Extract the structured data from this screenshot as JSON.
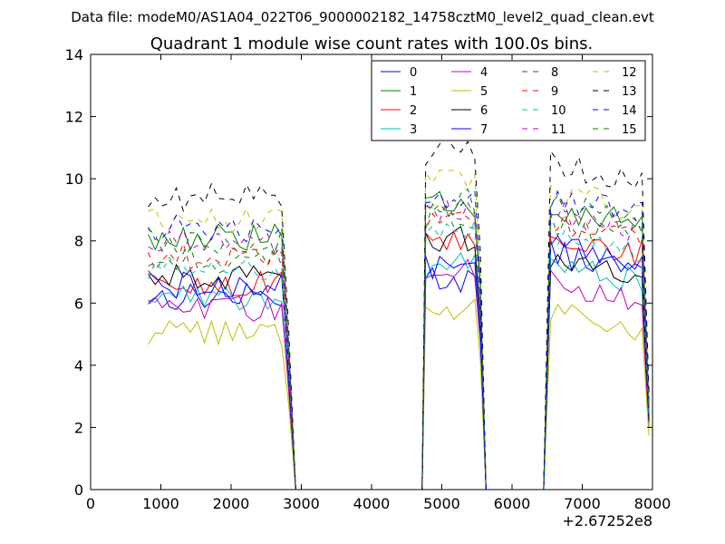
{
  "chart_data": {
    "type": "line",
    "suptitle": "Data file: modeM0/AS1A04_022T06_9000002182_14758cztM0_level2_quad_clean.evt",
    "title": "Quadrant 1 module wise count rates with 100.0s bins.",
    "xlabel": "",
    "ylabel": "",
    "xlim": [
      0,
      8000
    ],
    "ylim": [
      0,
      14
    ],
    "x_offset_label": "+2.67252e8",
    "xticks": [
      0,
      1000,
      2000,
      3000,
      4000,
      5000,
      6000,
      7000,
      8000
    ],
    "yticks": [
      0,
      2,
      4,
      6,
      8,
      10,
      12,
      14
    ],
    "grid": false,
    "legend_position": "top-right",
    "segments": [
      {
        "x_start": 820,
        "x_end": 2720,
        "step": 100
      },
      {
        "x_start": 4770,
        "x_end": 5470,
        "step": 100
      },
      {
        "x_start": 6550,
        "x_end": 7850,
        "step": 100
      }
    ],
    "gap_points": [
      [
        2820,
        4
      ],
      [
        2920,
        0
      ],
      [
        2950,
        0
      ],
      [
        4720,
        0
      ],
      [
        5600,
        0
      ],
      [
        5630,
        0
      ],
      [
        6450,
        0
      ]
    ],
    "series": [
      {
        "name": "0",
        "color": "#0000ff",
        "dash": "solid",
        "levels": [
          6.2,
          6.8,
          7.6
        ]
      },
      {
        "name": "1",
        "color": "#008000",
        "dash": "solid",
        "levels": [
          8.1,
          9.2,
          9.1
        ]
      },
      {
        "name": "2",
        "color": "#ff0000",
        "dash": "solid",
        "levels": [
          6.6,
          7.9,
          8.2
        ]
      },
      {
        "name": "3",
        "color": "#00bfbf",
        "dash": "solid",
        "levels": [
          6.2,
          7.2,
          7.3
        ]
      },
      {
        "name": "4",
        "color": "#bf00bf",
        "dash": "solid",
        "levels": [
          5.8,
          7.0,
          6.7
        ]
      },
      {
        "name": "5",
        "color": "#bfbf00",
        "dash": "solid",
        "levels": [
          5.0,
          5.9,
          5.8
        ]
      },
      {
        "name": "6",
        "color": "#000000",
        "dash": "solid",
        "levels": [
          6.9,
          8.1,
          7.3
        ]
      },
      {
        "name": "7",
        "color": "#0000ff",
        "dash": "solid",
        "levels": [
          6.6,
          7.2,
          7.8
        ]
      },
      {
        "name": "8",
        "color": "#008000",
        "dash": "dashed",
        "levels": [
          7.4,
          8.8,
          8.6
        ]
      },
      {
        "name": "9",
        "color": "#ff0000",
        "dash": "dashed",
        "levels": [
          7.5,
          8.6,
          8.7
        ]
      },
      {
        "name": "10",
        "color": "#00bfbf",
        "dash": "dashed",
        "levels": [
          7.2,
          8.3,
          8.1
        ]
      },
      {
        "name": "11",
        "color": "#bf00bf",
        "dash": "dashed",
        "levels": [
          7.9,
          9.0,
          8.9
        ]
      },
      {
        "name": "12",
        "color": "#bfbf00",
        "dash": "dashed",
        "levels": [
          8.7,
          9.9,
          9.6
        ]
      },
      {
        "name": "13",
        "color": "#000000",
        "dash": "dashed",
        "levels": [
          9.4,
          10.9,
          10.5
        ]
      },
      {
        "name": "14",
        "color": "#0000ff",
        "dash": "dashed",
        "levels": [
          8.4,
          9.5,
          9.4
        ]
      },
      {
        "name": "15",
        "color": "#008000",
        "dash": "dashed",
        "levels": [
          8.0,
          9.3,
          9.2
        ]
      }
    ]
  }
}
